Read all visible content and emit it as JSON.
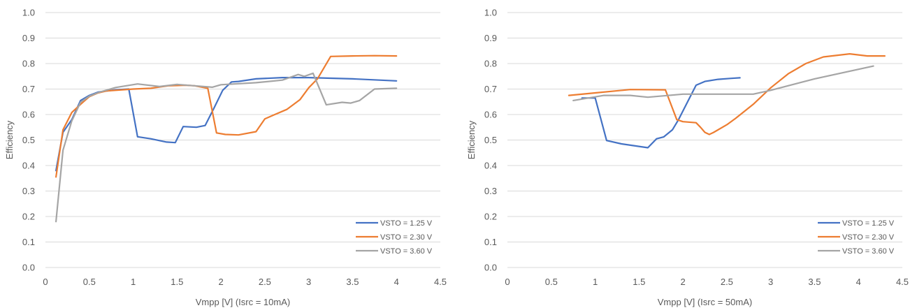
{
  "chart_data": [
    {
      "type": "line",
      "xlabel": "Vmpp [V] (Isrc = 10mA)",
      "ylabel": "Efficiency",
      "xlim": [
        0,
        4.5
      ],
      "ylim": [
        0,
        1.0
      ],
      "x_ticks": [
        "0",
        "0.5",
        "1",
        "1.5",
        "2",
        "2.5",
        "3",
        "3.5",
        "4",
        "4.5"
      ],
      "y_ticks": [
        "0.0",
        "0.1",
        "0.2",
        "0.3",
        "0.4",
        "0.5",
        "0.6",
        "0.7",
        "0.8",
        "0.9",
        "1.0"
      ],
      "grid": "horizontal",
      "legend_position": "bottom-right",
      "series": [
        {
          "name": "VSTO = 1.25 V",
          "color": "#4472C4",
          "points": [
            [
              0.12,
              0.38
            ],
            [
              0.2,
              0.53
            ],
            [
              0.3,
              0.58
            ],
            [
              0.4,
              0.655
            ],
            [
              0.5,
              0.675
            ],
            [
              0.6,
              0.688
            ],
            [
              0.7,
              0.693
            ],
            [
              0.8,
              0.697
            ],
            [
              0.95,
              0.7
            ],
            [
              1.05,
              0.513
            ],
            [
              1.2,
              0.505
            ],
            [
              1.38,
              0.492
            ],
            [
              1.48,
              0.49
            ],
            [
              1.57,
              0.553
            ],
            [
              1.72,
              0.55
            ],
            [
              1.82,
              0.557
            ],
            [
              1.92,
              0.625
            ],
            [
              2.02,
              0.695
            ],
            [
              2.12,
              0.728
            ],
            [
              2.2,
              0.73
            ],
            [
              2.4,
              0.74
            ],
            [
              2.7,
              0.745
            ],
            [
              3.0,
              0.745
            ],
            [
              3.5,
              0.74
            ],
            [
              4.0,
              0.732
            ]
          ]
        },
        {
          "name": "VSTO = 2.30 V",
          "color": "#ED7D31",
          "points": [
            [
              0.12,
              0.355
            ],
            [
              0.2,
              0.54
            ],
            [
              0.3,
              0.608
            ],
            [
              0.4,
              0.64
            ],
            [
              0.5,
              0.67
            ],
            [
              0.6,
              0.685
            ],
            [
              0.7,
              0.693
            ],
            [
              0.8,
              0.695
            ],
            [
              1.0,
              0.7
            ],
            [
              1.2,
              0.703
            ],
            [
              1.4,
              0.713
            ],
            [
              1.6,
              0.715
            ],
            [
              1.7,
              0.713
            ],
            [
              1.85,
              0.703
            ],
            [
              1.95,
              0.528
            ],
            [
              2.05,
              0.522
            ],
            [
              2.2,
              0.52
            ],
            [
              2.4,
              0.533
            ],
            [
              2.5,
              0.583
            ],
            [
              2.6,
              0.598
            ],
            [
              2.75,
              0.62
            ],
            [
              2.9,
              0.658
            ],
            [
              3.0,
              0.705
            ],
            [
              3.1,
              0.74
            ],
            [
              3.25,
              0.828
            ],
            [
              3.5,
              0.83
            ],
            [
              3.75,
              0.831
            ],
            [
              4.0,
              0.83
            ]
          ]
        },
        {
          "name": "VSTO = 3.60 V",
          "color": "#A5A5A5",
          "points": [
            [
              0.12,
              0.18
            ],
            [
              0.2,
              0.46
            ],
            [
              0.3,
              0.575
            ],
            [
              0.4,
              0.648
            ],
            [
              0.5,
              0.672
            ],
            [
              0.6,
              0.686
            ],
            [
              0.8,
              0.706
            ],
            [
              1.05,
              0.72
            ],
            [
              1.3,
              0.71
            ],
            [
              1.5,
              0.718
            ],
            [
              1.7,
              0.713
            ],
            [
              1.9,
              0.707
            ],
            [
              2.0,
              0.717
            ],
            [
              2.4,
              0.725
            ],
            [
              2.7,
              0.735
            ],
            [
              2.88,
              0.757
            ],
            [
              2.95,
              0.75
            ],
            [
              3.05,
              0.762
            ],
            [
              3.2,
              0.638
            ],
            [
              3.38,
              0.648
            ],
            [
              3.48,
              0.645
            ],
            [
              3.58,
              0.655
            ],
            [
              3.75,
              0.7
            ],
            [
              4.0,
              0.703
            ]
          ]
        }
      ]
    },
    {
      "type": "line",
      "xlabel": "Vmpp [V] (Isrc = 50mA)",
      "ylabel": "Efficiency",
      "xlim": [
        0,
        4.5
      ],
      "ylim": [
        0,
        1.0
      ],
      "x_ticks": [
        "0",
        "0.5",
        "1",
        "1.5",
        "2",
        "2.5",
        "3",
        "3.5",
        "4",
        "4.5"
      ],
      "y_ticks": [
        "0.0",
        "0.1",
        "0.2",
        "0.3",
        "0.4",
        "0.5",
        "0.6",
        "0.7",
        "0.8",
        "0.9",
        "1.0"
      ],
      "grid": "horizontal",
      "legend_position": "bottom-right",
      "series": [
        {
          "name": "VSTO = 1.25 V",
          "color": "#4472C4",
          "points": [
            [
              0.85,
              0.665
            ],
            [
              1.0,
              0.665
            ],
            [
              1.13,
              0.498
            ],
            [
              1.3,
              0.485
            ],
            [
              1.6,
              0.47
            ],
            [
              1.7,
              0.505
            ],
            [
              1.78,
              0.512
            ],
            [
              1.88,
              0.54
            ],
            [
              1.95,
              0.58
            ],
            [
              2.05,
              0.648
            ],
            [
              2.15,
              0.715
            ],
            [
              2.25,
              0.73
            ],
            [
              2.4,
              0.738
            ],
            [
              2.55,
              0.742
            ],
            [
              2.65,
              0.744
            ]
          ]
        },
        {
          "name": "VSTO = 2.30 V",
          "color": "#ED7D31",
          "points": [
            [
              0.7,
              0.675
            ],
            [
              1.0,
              0.685
            ],
            [
              1.4,
              0.698
            ],
            [
              1.8,
              0.697
            ],
            [
              1.93,
              0.58
            ],
            [
              2.0,
              0.572
            ],
            [
              2.15,
              0.568
            ],
            [
              2.2,
              0.55
            ],
            [
              2.25,
              0.53
            ],
            [
              2.3,
              0.522
            ],
            [
              2.35,
              0.53
            ],
            [
              2.5,
              0.56
            ],
            [
              2.6,
              0.585
            ],
            [
              2.8,
              0.64
            ],
            [
              3.0,
              0.705
            ],
            [
              3.2,
              0.76
            ],
            [
              3.4,
              0.8
            ],
            [
              3.6,
              0.826
            ],
            [
              3.9,
              0.838
            ],
            [
              4.1,
              0.83
            ],
            [
              4.3,
              0.83
            ]
          ]
        },
        {
          "name": "VSTO = 3.60 V",
          "color": "#A5A5A5",
          "points": [
            [
              0.75,
              0.655
            ],
            [
              1.1,
              0.675
            ],
            [
              1.4,
              0.675
            ],
            [
              1.6,
              0.668
            ],
            [
              2.0,
              0.68
            ],
            [
              2.4,
              0.68
            ],
            [
              2.8,
              0.68
            ],
            [
              3.0,
              0.695
            ],
            [
              3.5,
              0.74
            ],
            [
              4.17,
              0.79
            ]
          ]
        }
      ]
    }
  ]
}
